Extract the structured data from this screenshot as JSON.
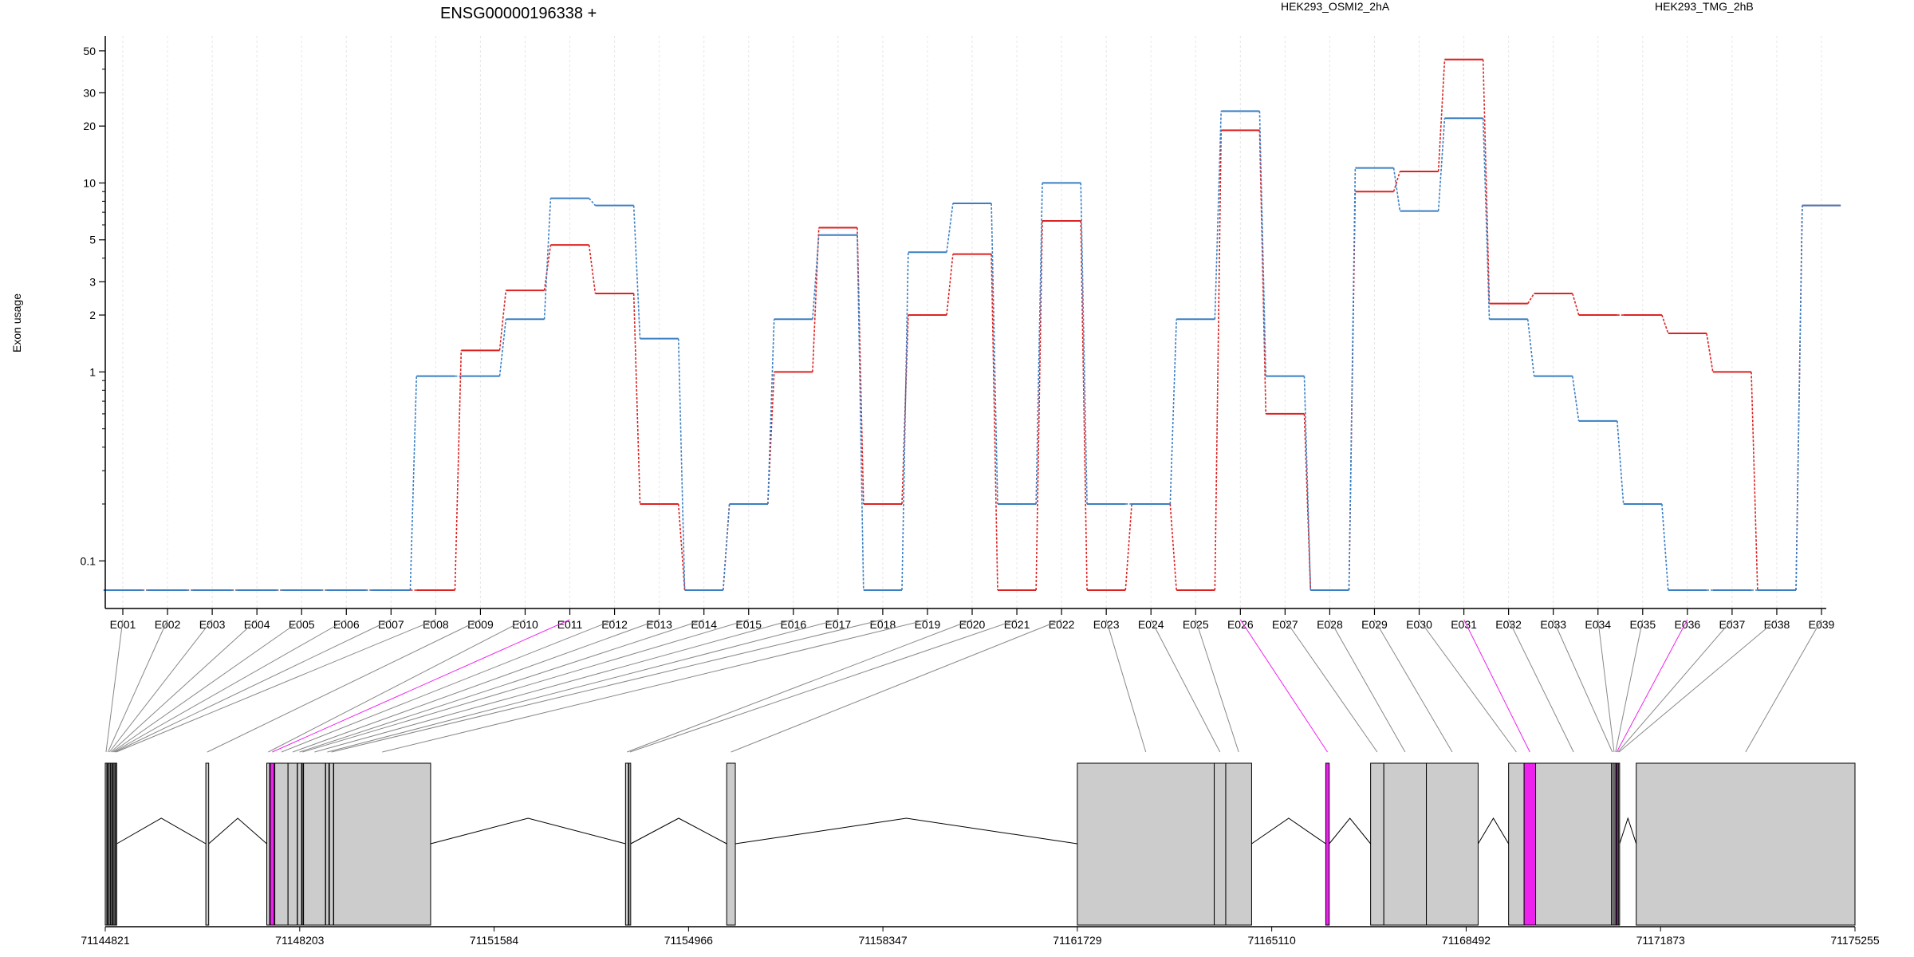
{
  "chart_data": {
    "type": "line",
    "title": "ENSG00000196338 +",
    "ylabel": "Exon usage",
    "xlabel": "",
    "y_scale": "log",
    "ylim": [
      0.07,
      55
    ],
    "y_ticks": [
      "0.1",
      "1",
      "2",
      "3",
      "5",
      "10",
      "20",
      "30",
      "50"
    ],
    "grid": true,
    "legend_position": "top",
    "categories": [
      "E001",
      "E002",
      "E003",
      "E004",
      "E005",
      "E006",
      "E007",
      "E008",
      "E009",
      "E010",
      "E011",
      "E012",
      "E013",
      "E014",
      "E015",
      "E016",
      "E017",
      "E018",
      "E019",
      "E020",
      "E021",
      "E022",
      "E023",
      "E024",
      "E025",
      "E026",
      "E027",
      "E028",
      "E029",
      "E030",
      "E031",
      "E032",
      "E033",
      "E034",
      "E035",
      "E036",
      "E037",
      "E038",
      "E039"
    ],
    "series": [
      {
        "name": "HEK293_OSMI2_2hA",
        "color": "#dd2222",
        "values": [
          0.07,
          0.07,
          0.07,
          0.07,
          0.07,
          0.07,
          0.07,
          0.07,
          1.3,
          2.7,
          4.7,
          2.6,
          0.2,
          0.07,
          0.2,
          1.0,
          5.8,
          0.2,
          2.0,
          4.2,
          0.07,
          6.3,
          0.07,
          0.2,
          0.07,
          19.0,
          0.6,
          0.07,
          9.0,
          11.5,
          45.0,
          2.3,
          2.6,
          2.0,
          2.0,
          1.6,
          1.0,
          0.07,
          7.6
        ]
      },
      {
        "name": "HEK293_TMG_2hB",
        "color": "#3a7fc4",
        "values": [
          0.07,
          0.07,
          0.07,
          0.07,
          0.07,
          0.07,
          0.07,
          0.95,
          0.95,
          1.9,
          8.3,
          7.6,
          1.5,
          0.07,
          0.2,
          1.9,
          5.3,
          0.07,
          4.3,
          7.8,
          0.2,
          10.0,
          0.2,
          0.2,
          1.9,
          24.0,
          0.95,
          0.07,
          12.0,
          7.1,
          22.0,
          1.9,
          0.95,
          0.55,
          0.2,
          0.07,
          0.07,
          0.07,
          7.6
        ]
      }
    ],
    "highlighted_exons": [
      "E011",
      "E026",
      "E031",
      "E036"
    ],
    "highlight_color": "#ee22ee",
    "genomic_axis": {
      "start": 71144821,
      "end": 71175255,
      "tick_labels": [
        "71144821",
        "71148203",
        "71151584",
        "71154966",
        "71158347",
        "71161729",
        "71165110",
        "71168492",
        "71171873",
        "71175255"
      ]
    },
    "exon_coordinates": [
      [
        71144821,
        71144848
      ],
      [
        71144858,
        71144872
      ],
      [
        71144880,
        71144905
      ],
      [
        71144910,
        71144930
      ],
      [
        71144935,
        71144950
      ],
      [
        71144955,
        71144970
      ],
      [
        71144975,
        71144990
      ],
      [
        71145000,
        71145020
      ],
      [
        71146570,
        71146620
      ],
      [
        71147630,
        71147680
      ],
      [
        71147690,
        71147760
      ],
      [
        71147770,
        71148000
      ],
      [
        71148000,
        71148160
      ],
      [
        71148165,
        71148235
      ],
      [
        71148240,
        71148260
      ],
      [
        71148270,
        71148650
      ],
      [
        71148655,
        71148710
      ],
      [
        71148720,
        71148790
      ],
      [
        71148795,
        71150480
      ],
      [
        71153870,
        71153920
      ],
      [
        71153930,
        71153960
      ],
      [
        71155630,
        71155780
      ],
      [
        71161729,
        71164110
      ],
      [
        71164110,
        71164310
      ],
      [
        71164310,
        71164760
      ],
      [
        71166050,
        71166110
      ],
      [
        71166830,
        71167060
      ],
      [
        71167060,
        71167800
      ],
      [
        71167800,
        71168700
      ],
      [
        71169230,
        71169500
      ],
      [
        71169500,
        71169700
      ],
      [
        71169700,
        71171020
      ],
      [
        71171020,
        71171050
      ],
      [
        71171050,
        71171080
      ],
      [
        71171080,
        71171100
      ],
      [
        71171100,
        71171120
      ],
      [
        71171120,
        71171140
      ],
      [
        71171140,
        71171160
      ],
      [
        71171450,
        71175255
      ]
    ]
  }
}
